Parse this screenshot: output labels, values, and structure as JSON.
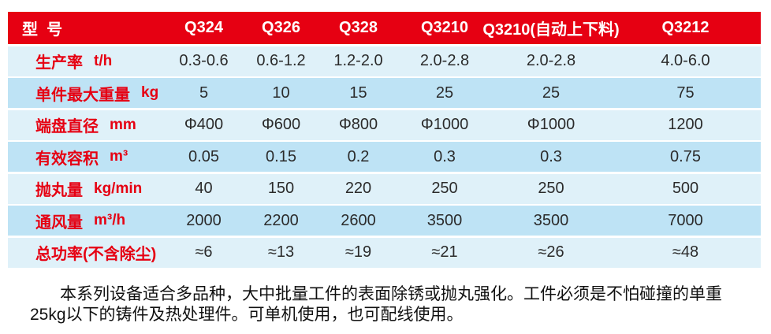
{
  "table": {
    "header": {
      "model_label": "型  号",
      "columns": [
        "Q324",
        "Q326",
        "Q328",
        "Q3210",
        "Q3210(自动上下料)",
        "Q3212"
      ]
    },
    "rows": [
      {
        "label": "生产率",
        "unit": "t/h",
        "values": [
          "0.3-0.6",
          "0.6-1.2",
          "1.2-2.0",
          "2.0-2.8",
          "2.0-2.8",
          "4.0-6.0"
        ]
      },
      {
        "label": "单件最大重量",
        "unit": "kg",
        "values": [
          "5",
          "10",
          "15",
          "25",
          "25",
          "75"
        ]
      },
      {
        "label": "端盘直径",
        "unit": "mm",
        "values": [
          "Φ400",
          "Φ600",
          "Φ800",
          "Φ1000",
          "Φ1000",
          "1200"
        ]
      },
      {
        "label": "有效容积",
        "unit": "m³",
        "values": [
          "0.05",
          "0.15",
          "0.2",
          "0.3",
          "0.3",
          "0.75"
        ]
      },
      {
        "label": "抛丸量",
        "unit": "kg/min",
        "values": [
          "40",
          "150",
          "220",
          "250",
          "250",
          "500"
        ]
      },
      {
        "label": "通风量",
        "unit": "m³/h",
        "values": [
          "2000",
          "2200",
          "2600",
          "3500",
          "3500",
          "7000"
        ]
      },
      {
        "label": "总功率(不含除尘)",
        "unit": "",
        "values": [
          "≈6",
          "≈13",
          "≈19",
          "≈21",
          "≈26",
          "≈48"
        ]
      }
    ]
  },
  "description": {
    "line1": "本系列设备适合多品种，大中批量工件的表面除锈或抛丸强化。工件必须是不怕碰撞的单重",
    "line2": "25kg以下的铸件及热处理件。可单机使用，也可配线使用。"
  },
  "colors": {
    "header_red": "#e60012",
    "row_light": "#dff1f9",
    "row_dark": "#bee3f5",
    "label_red": "#e60012",
    "value_text": "#2b2b2b"
  }
}
